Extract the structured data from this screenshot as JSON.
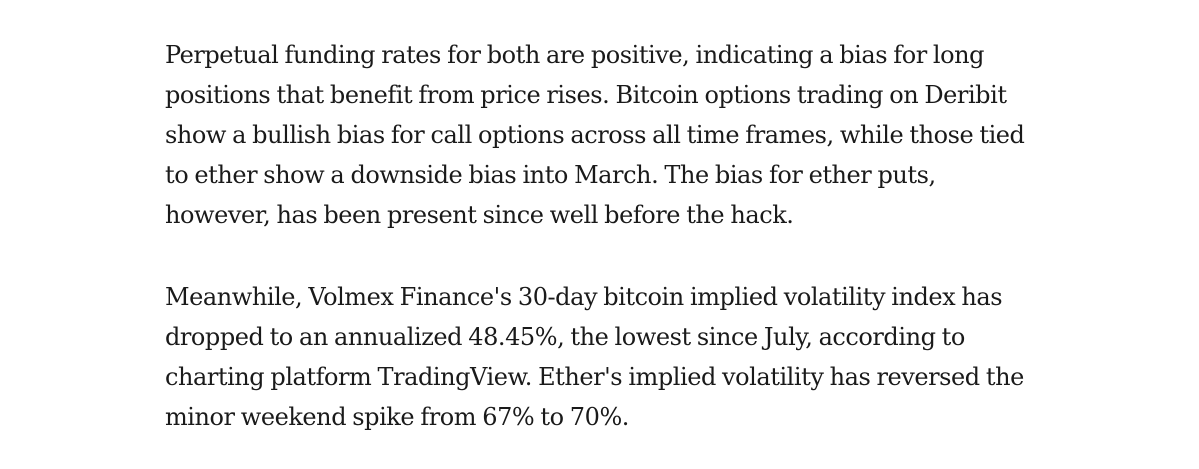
{
  "article": {
    "paragraphs": [
      {
        "lines": [
          "Perpetual funding rates for both are positive, indicating a bias for long",
          "positions that benefit from price rises. Bitcoin options trading on Deribit",
          "show a bullish bias for call options across all time frames, while those tied",
          "to ether show a downside bias into March. The bias for ether puts,",
          "however, has been present since well before the hack."
        ]
      },
      {
        "lines": [
          "Meanwhile, Volmex Finance's 30-day bitcoin implied volatility index has",
          "dropped to an annualized 48.45%, the lowest since July, according to",
          "charting platform TradingView. Ether's implied volatility has reversed the",
          "minor weekend spike from 67% to 70%."
        ]
      }
    ]
  }
}
